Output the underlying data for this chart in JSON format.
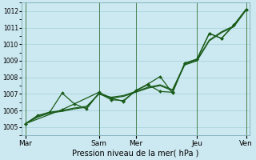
{
  "xlabel": "Pression niveau de la mer( hPa )",
  "bg_color": "#cce8f0",
  "grid_color": "#aad4dc",
  "line_color": "#1a5c1a",
  "ylim": [
    1004.5,
    1012.5
  ],
  "yticks": [
    1005,
    1006,
    1007,
    1008,
    1009,
    1010,
    1011,
    1012
  ],
  "ytick_fontsize": 5.5,
  "xtick_fontsize": 6.5,
  "xlabel_fontsize": 7,
  "xtick_labels": [
    "Mar",
    "Sam",
    "Mer",
    "Jeu",
    "Ven"
  ],
  "xtick_positions": [
    0,
    6,
    9,
    14,
    18
  ],
  "xlim": [
    -0.3,
    18.3
  ],
  "n_points": 19,
  "series1_x": [
    0,
    1,
    2,
    3,
    4,
    5,
    6,
    7,
    8,
    9,
    10,
    11,
    12,
    13,
    14,
    15,
    16,
    17,
    18
  ],
  "series1_y": [
    1005.2,
    1005.6,
    1005.85,
    1005.95,
    1006.1,
    1006.2,
    1007.0,
    1006.75,
    1006.85,
    1007.1,
    1007.35,
    1007.5,
    1007.2,
    1008.75,
    1009.0,
    1010.2,
    1010.7,
    1011.05,
    1012.05
  ],
  "series2_x": [
    0,
    1,
    2,
    3,
    4,
    5,
    6,
    7,
    8,
    9,
    10,
    11,
    12,
    13,
    14,
    15,
    16,
    17,
    18
  ],
  "series2_y": [
    1005.2,
    1005.65,
    1005.9,
    1006.0,
    1006.15,
    1006.25,
    1007.0,
    1006.8,
    1006.9,
    1007.15,
    1007.4,
    1007.55,
    1007.25,
    1008.8,
    1009.05,
    1010.25,
    1010.75,
    1011.1,
    1012.1
  ],
  "series3_x": [
    0,
    1,
    2,
    3,
    4,
    5,
    6,
    7,
    8,
    9,
    10,
    11,
    12,
    13,
    14,
    15,
    16,
    17,
    18
  ],
  "series3_y": [
    1005.2,
    1005.7,
    1005.9,
    1007.05,
    1006.4,
    1006.1,
    1007.05,
    1006.65,
    1006.6,
    1007.2,
    1007.55,
    1007.15,
    1007.1,
    1008.85,
    1009.1,
    1010.65,
    1010.35,
    1011.15,
    1012.1
  ],
  "series4_x": [
    0,
    3,
    6,
    7,
    8,
    9,
    10,
    11,
    12,
    13,
    14,
    15,
    16,
    17,
    18
  ],
  "series4_y": [
    1005.2,
    1006.05,
    1007.1,
    1006.75,
    1006.55,
    1007.2,
    1007.6,
    1008.05,
    1007.05,
    1008.85,
    1009.1,
    1010.65,
    1010.35,
    1011.15,
    1012.1
  ]
}
